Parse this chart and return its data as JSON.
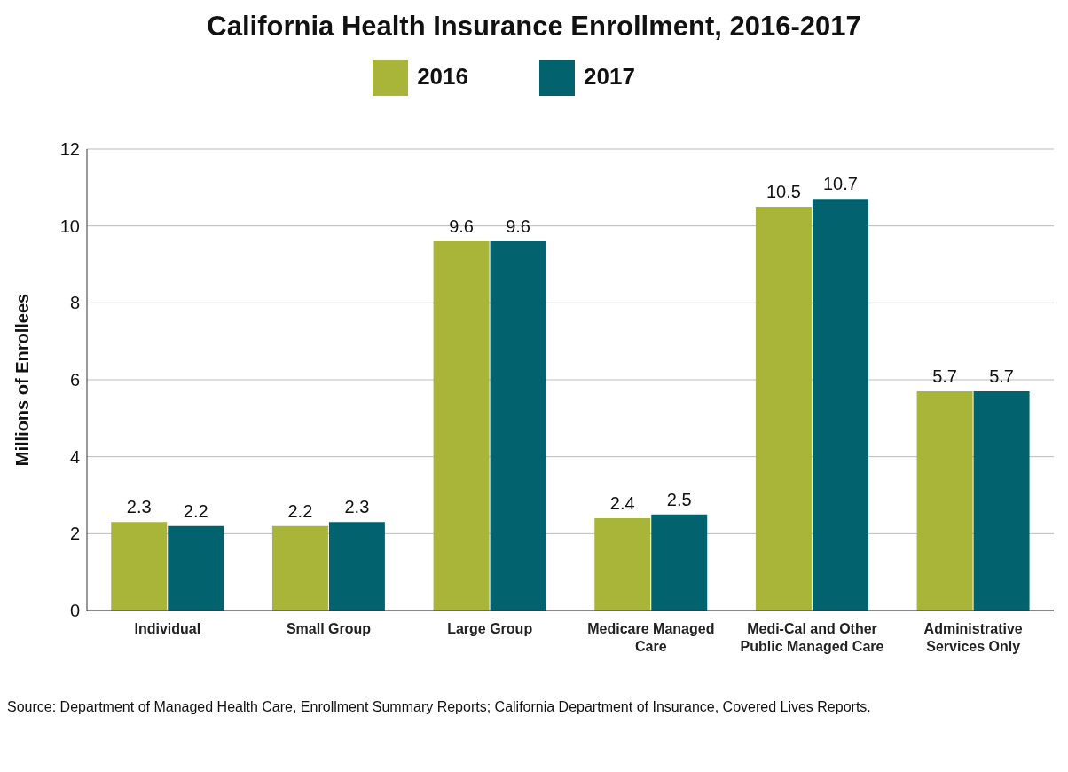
{
  "chart_data": {
    "type": "bar",
    "title": "California Health Insurance Enrollment, 2016-2017",
    "ylabel": "Millions of Enrollees",
    "categories": [
      "Individual",
      "Small Group",
      "Large Group",
      "Medicare Managed Care",
      "Medi-Cal and Other Public Managed Care",
      "Administrative Services Only"
    ],
    "series": [
      {
        "name": "2016",
        "color": "#a8b538",
        "values": [
          2.3,
          2.2,
          9.6,
          2.4,
          10.5,
          5.7
        ]
      },
      {
        "name": "2017",
        "color": "#02636e",
        "values": [
          2.2,
          2.3,
          9.6,
          2.5,
          10.7,
          5.7
        ]
      }
    ],
    "ylim": [
      0,
      12
    ],
    "yticks": [
      0,
      2,
      4,
      6,
      8,
      10,
      12
    ],
    "grid": "y",
    "legend": "top",
    "data_labels": true,
    "annotations": [
      "Source:  Department of Managed Health Care, Enrollment Summary Reports; California Department of Insurance, Covered Lives Reports."
    ]
  }
}
